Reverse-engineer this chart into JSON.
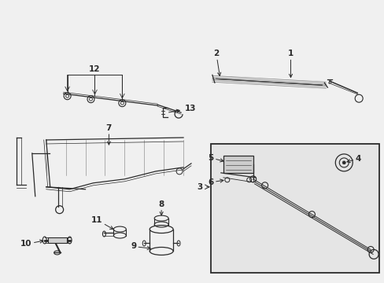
{
  "bg_color": "#f0f0f0",
  "line_color": "#2a2a2a",
  "box_fill": "#e8e8e8",
  "figsize": [
    4.89,
    3.6
  ],
  "dpi": 100,
  "lw": 0.9
}
